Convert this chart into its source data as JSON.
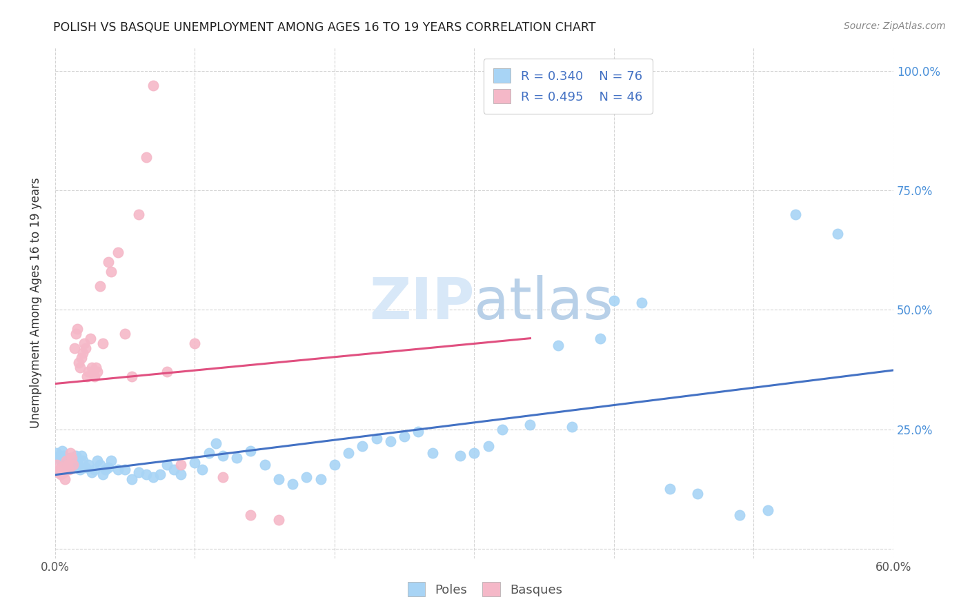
{
  "title": "POLISH VS BASQUE UNEMPLOYMENT AMONG AGES 16 TO 19 YEARS CORRELATION CHART",
  "source": "Source: ZipAtlas.com",
  "ylabel": "Unemployment Among Ages 16 to 19 years",
  "xlim": [
    0.0,
    0.6
  ],
  "ylim": [
    -0.02,
    1.05
  ],
  "poles_color": "#a8d4f5",
  "basques_color": "#f5b8c8",
  "poles_line_color": "#4472c4",
  "basques_line_color": "#e05080",
  "legend_text_color": "#4472c4",
  "watermark_color": "#d8e8f8",
  "legend_r_poles": "R = 0.340",
  "legend_n_poles": "N = 76",
  "legend_r_basques": "R = 0.495",
  "legend_n_basques": "N = 46",
  "poles_x": [
    0.001,
    0.002,
    0.003,
    0.004,
    0.005,
    0.006,
    0.007,
    0.008,
    0.009,
    0.01,
    0.011,
    0.012,
    0.013,
    0.014,
    0.015,
    0.016,
    0.017,
    0.018,
    0.019,
    0.02,
    0.022,
    0.024,
    0.026,
    0.028,
    0.03,
    0.032,
    0.034,
    0.036,
    0.038,
    0.04,
    0.045,
    0.05,
    0.055,
    0.06,
    0.065,
    0.07,
    0.075,
    0.08,
    0.085,
    0.09,
    0.1,
    0.105,
    0.11,
    0.115,
    0.12,
    0.13,
    0.14,
    0.15,
    0.16,
    0.17,
    0.18,
    0.19,
    0.2,
    0.21,
    0.22,
    0.23,
    0.24,
    0.25,
    0.26,
    0.27,
    0.29,
    0.3,
    0.31,
    0.32,
    0.34,
    0.36,
    0.37,
    0.39,
    0.4,
    0.42,
    0.44,
    0.46,
    0.49,
    0.51,
    0.53,
    0.56
  ],
  "poles_y": [
    0.2,
    0.19,
    0.195,
    0.185,
    0.205,
    0.195,
    0.18,
    0.175,
    0.185,
    0.175,
    0.19,
    0.18,
    0.17,
    0.175,
    0.195,
    0.185,
    0.17,
    0.165,
    0.195,
    0.185,
    0.17,
    0.175,
    0.16,
    0.165,
    0.185,
    0.175,
    0.155,
    0.165,
    0.17,
    0.185,
    0.165,
    0.165,
    0.145,
    0.16,
    0.155,
    0.15,
    0.155,
    0.175,
    0.165,
    0.155,
    0.18,
    0.165,
    0.2,
    0.22,
    0.195,
    0.19,
    0.205,
    0.175,
    0.145,
    0.135,
    0.15,
    0.145,
    0.175,
    0.2,
    0.215,
    0.23,
    0.225,
    0.235,
    0.245,
    0.2,
    0.195,
    0.2,
    0.215,
    0.25,
    0.26,
    0.425,
    0.255,
    0.44,
    0.52,
    0.515,
    0.125,
    0.115,
    0.07,
    0.08,
    0.7,
    0.66
  ],
  "basques_x": [
    0.001,
    0.002,
    0.003,
    0.004,
    0.005,
    0.006,
    0.007,
    0.008,
    0.009,
    0.01,
    0.011,
    0.012,
    0.013,
    0.014,
    0.015,
    0.016,
    0.017,
    0.018,
    0.019,
    0.02,
    0.021,
    0.022,
    0.023,
    0.024,
    0.025,
    0.026,
    0.027,
    0.028,
    0.029,
    0.03,
    0.032,
    0.034,
    0.038,
    0.04,
    0.045,
    0.05,
    0.055,
    0.06,
    0.065,
    0.07,
    0.08,
    0.09,
    0.1,
    0.12,
    0.14,
    0.16
  ],
  "basques_y": [
    0.175,
    0.16,
    0.165,
    0.155,
    0.17,
    0.16,
    0.145,
    0.185,
    0.175,
    0.165,
    0.2,
    0.19,
    0.175,
    0.42,
    0.45,
    0.46,
    0.39,
    0.38,
    0.4,
    0.41,
    0.43,
    0.42,
    0.36,
    0.37,
    0.44,
    0.38,
    0.37,
    0.36,
    0.38,
    0.37,
    0.55,
    0.43,
    0.6,
    0.58,
    0.62,
    0.45,
    0.36,
    0.7,
    0.82,
    0.97,
    0.37,
    0.175,
    0.43,
    0.15,
    0.07,
    0.06
  ]
}
